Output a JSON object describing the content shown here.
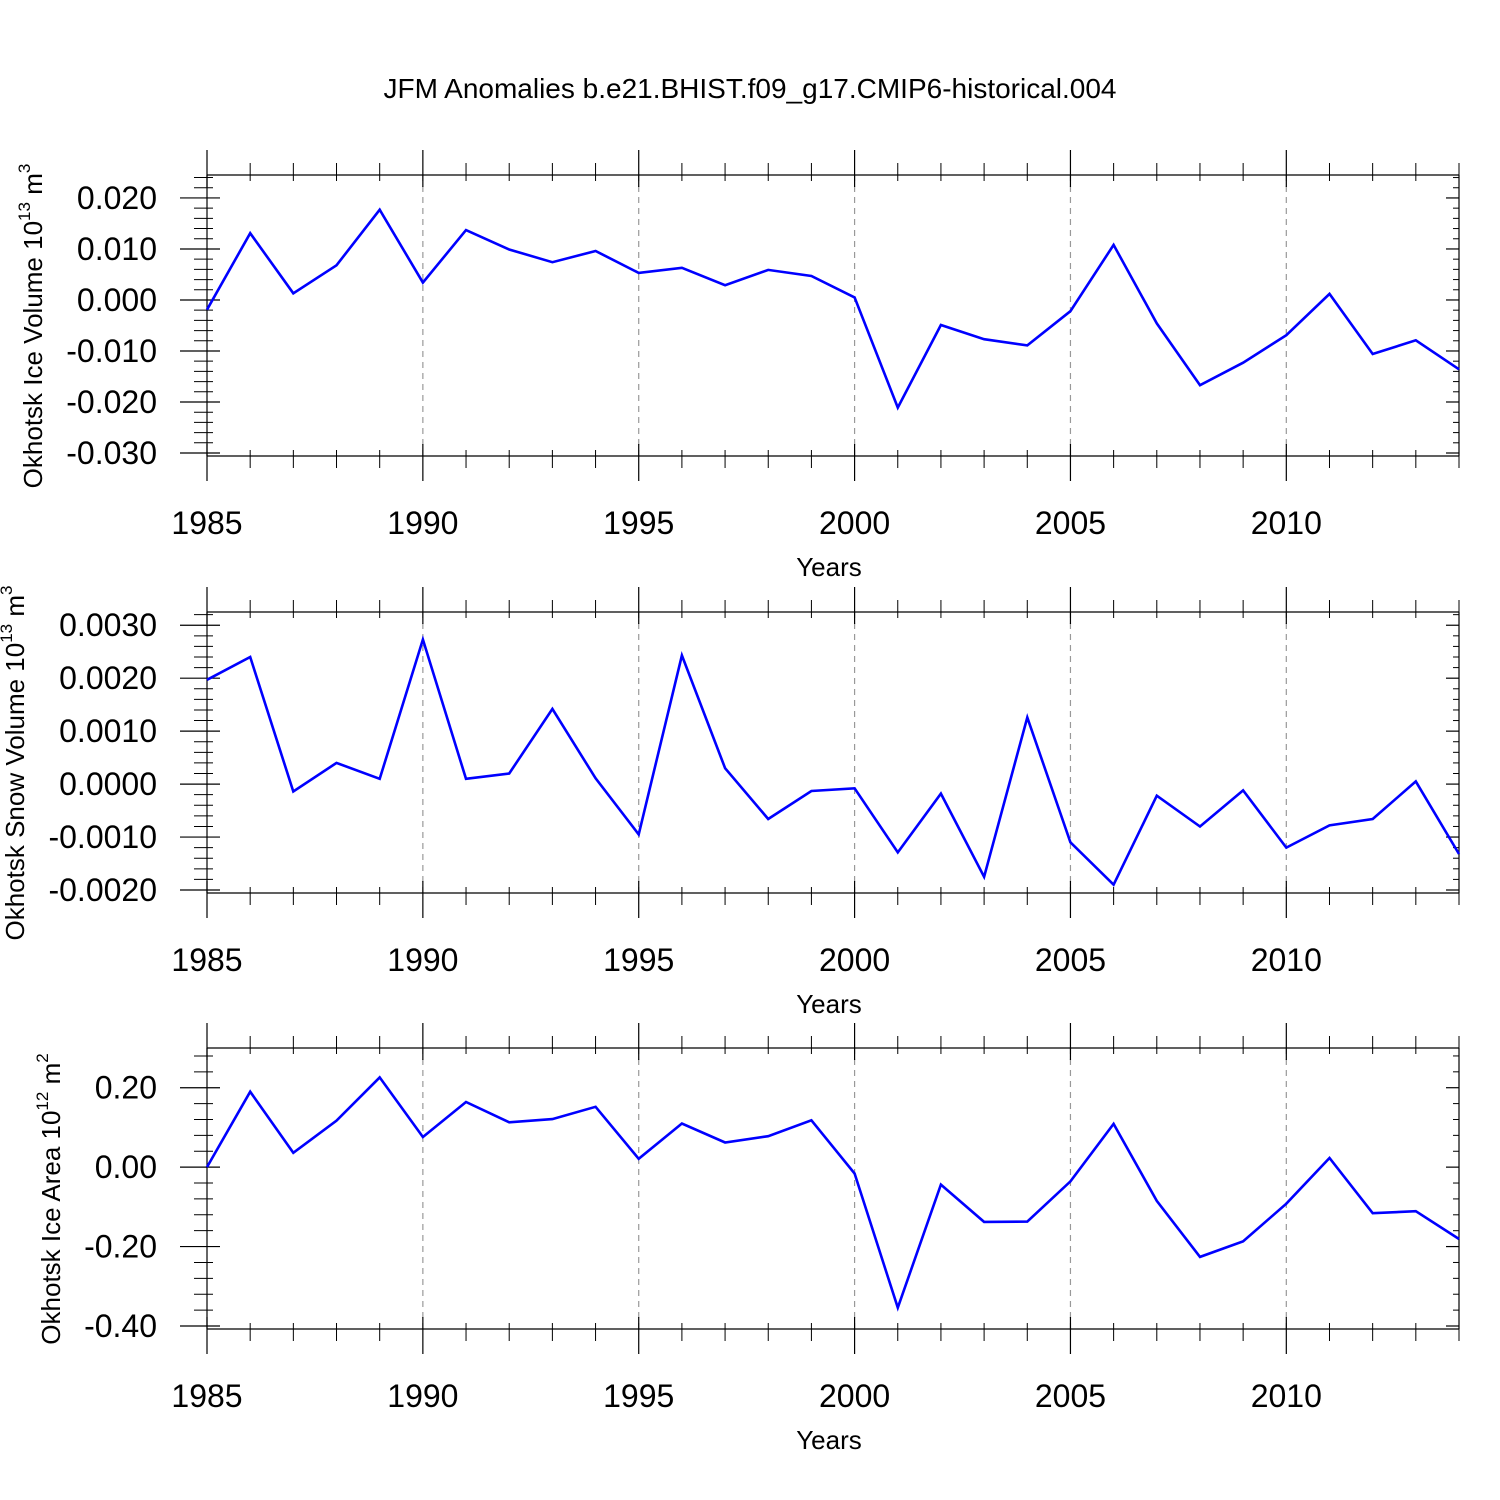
{
  "figure": {
    "title": "JFM Anomalies b.e21.BHIST.f09_g17.CMIP6-historical.004"
  },
  "chart_data": [
    {
      "type": "line",
      "id": "ice-volume",
      "xlabel": "Years",
      "ylabel_main": "Okhotsk Ice Volume 10",
      "ylabel_exp": "13",
      "ylabel_unit": "m",
      "ylabel_unit_exp": "3",
      "xlim": [
        1985,
        2014
      ],
      "ylim": [
        -0.03,
        0.0245
      ],
      "x_ticks": [
        1985,
        1990,
        1995,
        2000,
        2005,
        2010
      ],
      "y_ticks": [
        -0.03,
        -0.02,
        -0.01,
        0.0,
        0.01,
        0.02
      ],
      "y_tick_labels": [
        "-0.030",
        "-0.020",
        "-0.010",
        "0.000",
        "0.010",
        "0.020"
      ],
      "grid_x": [
        1990,
        1995,
        2000,
        2005,
        2010
      ],
      "line_color": "#0000ff",
      "x": [
        1985,
        1986,
        1987,
        1988,
        1989,
        1990,
        1991,
        1992,
        1993,
        1994,
        1995,
        1996,
        1997,
        1998,
        1999,
        2000,
        2001,
        2002,
        2003,
        2004,
        2005,
        2006,
        2007,
        2008,
        2009,
        2010,
        2011,
        2012,
        2013,
        2014
      ],
      "values": [
        -0.0019,
        0.0131,
        0.0013,
        0.0068,
        0.0177,
        0.0034,
        0.0137,
        0.0099,
        0.0074,
        0.0096,
        0.0053,
        0.0063,
        0.0029,
        0.0059,
        0.0047,
        0.0005,
        -0.0211,
        -0.0049,
        -0.0077,
        -0.0089,
        -0.0022,
        0.0108,
        -0.0046,
        -0.0167,
        -0.0123,
        -0.0069,
        0.0012,
        -0.0106,
        -0.0079,
        -0.0136
      ]
    },
    {
      "type": "line",
      "id": "snow-volume",
      "xlabel": "Years",
      "ylabel_main": "Okhotsk Snow Volume 10",
      "ylabel_exp": "13",
      "ylabel_unit": "m",
      "ylabel_unit_exp": "3",
      "xlim": [
        1985,
        2014
      ],
      "ylim": [
        -0.002,
        0.00325
      ],
      "x_ticks": [
        1985,
        1990,
        1995,
        2000,
        2005,
        2010
      ],
      "y_ticks": [
        -0.002,
        -0.001,
        0.0,
        0.001,
        0.002,
        0.003
      ],
      "y_tick_labels": [
        "-0.0020",
        "-0.0010",
        "0.0000",
        "0.0010",
        "0.0020",
        "0.0030"
      ],
      "grid_x": [
        1990,
        1995,
        2000,
        2005,
        2010
      ],
      "line_color": "#0000ff",
      "x": [
        1985,
        1986,
        1987,
        1988,
        1989,
        1990,
        1991,
        1992,
        1993,
        1994,
        1995,
        1996,
        1997,
        1998,
        1999,
        2000,
        2001,
        2002,
        2003,
        2004,
        2005,
        2006,
        2007,
        2008,
        2009,
        2010,
        2011,
        2012,
        2013,
        2014
      ],
      "values": [
        0.00197,
        0.0024,
        -0.00014,
        0.0004,
        0.0001,
        0.00273,
        0.0001,
        0.0002,
        0.00142,
        0.00011,
        -0.00095,
        0.00243,
        0.0003,
        -0.00066,
        -0.00013,
        -8e-05,
        -0.00129,
        -0.00018,
        -0.00175,
        0.00126,
        -0.0011,
        -0.0019,
        -0.00022,
        -0.0008,
        -0.00012,
        -0.0012,
        -0.00078,
        -0.00066,
        5e-05,
        -0.00132
      ]
    },
    {
      "type": "line",
      "id": "ice-area",
      "xlabel": "Years",
      "ylabel_main": "Okhotsk Ice Area 10",
      "ylabel_exp": "12",
      "ylabel_unit": "m",
      "ylabel_unit_exp": "2",
      "xlim": [
        1985,
        2014
      ],
      "ylim": [
        -0.4,
        0.3
      ],
      "x_ticks": [
        1985,
        1990,
        1995,
        2000,
        2005,
        2010
      ],
      "y_ticks": [
        -0.4,
        -0.2,
        0.0,
        0.2
      ],
      "y_tick_labels": [
        "-0.40",
        "-0.20",
        "0.00",
        "0.20"
      ],
      "grid_x": [
        1990,
        1995,
        2000,
        2005,
        2010
      ],
      "line_color": "#0000ff",
      "x": [
        1985,
        1986,
        1987,
        1988,
        1989,
        1990,
        1991,
        1992,
        1993,
        1994,
        1995,
        1996,
        1997,
        1998,
        1999,
        2000,
        2001,
        2002,
        2003,
        2004,
        2005,
        2006,
        2007,
        2008,
        2009,
        2010,
        2011,
        2012,
        2013,
        2014
      ],
      "values": [
        0.0,
        0.19,
        0.036,
        0.117,
        0.226,
        0.076,
        0.164,
        0.113,
        0.121,
        0.152,
        0.021,
        0.11,
        0.062,
        0.078,
        0.118,
        -0.016,
        -0.354,
        -0.044,
        -0.138,
        -0.137,
        -0.036,
        0.109,
        -0.085,
        -0.226,
        -0.187,
        -0.092,
        0.023,
        -0.116,
        -0.111,
        -0.181
      ]
    }
  ]
}
